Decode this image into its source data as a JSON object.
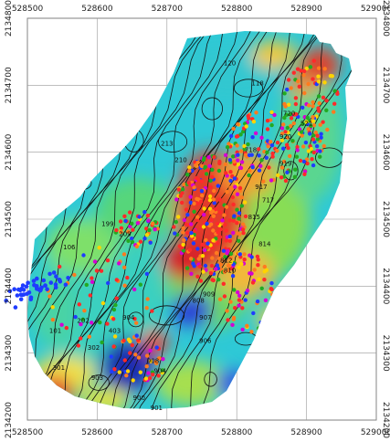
{
  "chart_data": {
    "type": "scatter",
    "title": "",
    "xlabel": "",
    "ylabel": "",
    "x_ticks": [
      "528500",
      "528600",
      "528700",
      "528800",
      "528900",
      "529000"
    ],
    "y_ticks": [
      "2134800",
      "2134700",
      "2134600",
      "2134500",
      "2134400",
      "2134300",
      "2134200"
    ],
    "xlim": [
      528500,
      529000
    ],
    "ylim": [
      2134200,
      2134800
    ],
    "grid": true,
    "contour_labels": [
      {
        "x": 528540,
        "y": 2134330,
        "text": "101"
      },
      {
        "x": 528560,
        "y": 2134455,
        "text": "106"
      },
      {
        "x": 528615,
        "y": 2134490,
        "text": "199"
      },
      {
        "x": 528640,
        "y": 2134475,
        "text": "209"
      },
      {
        "x": 528580,
        "y": 2134345,
        "text": "202"
      },
      {
        "x": 528595,
        "y": 2134305,
        "text": "302"
      },
      {
        "x": 528545,
        "y": 2134275,
        "text": "301"
      },
      {
        "x": 528625,
        "y": 2134330,
        "text": "403"
      },
      {
        "x": 528600,
        "y": 2134260,
        "text": "903"
      },
      {
        "x": 528645,
        "y": 2134350,
        "text": "904"
      },
      {
        "x": 528690,
        "y": 2134270,
        "text": "904"
      },
      {
        "x": 528660,
        "y": 2134230,
        "text": "900"
      },
      {
        "x": 528685,
        "y": 2134215,
        "text": "901"
      },
      {
        "x": 528680,
        "y": 2134285,
        "text": "908"
      },
      {
        "x": 528755,
        "y": 2134315,
        "text": "906"
      },
      {
        "x": 528755,
        "y": 2134350,
        "text": "907"
      },
      {
        "x": 528760,
        "y": 2134385,
        "text": "909"
      },
      {
        "x": 528745,
        "y": 2134375,
        "text": "808"
      },
      {
        "x": 528790,
        "y": 2134420,
        "text": "810"
      },
      {
        "x": 528785,
        "y": 2134435,
        "text": "812"
      },
      {
        "x": 528825,
        "y": 2134500,
        "text": "815"
      },
      {
        "x": 528840,
        "y": 2134460,
        "text": "814"
      },
      {
        "x": 528835,
        "y": 2134545,
        "text": "917"
      },
      {
        "x": 528870,
        "y": 2134580,
        "text": "919"
      },
      {
        "x": 528870,
        "y": 2134620,
        "text": "920"
      },
      {
        "x": 528900,
        "y": 2134640,
        "text": "521"
      },
      {
        "x": 528875,
        "y": 2134655,
        "text": "720"
      },
      {
        "x": 528790,
        "y": 2134730,
        "text": "120"
      },
      {
        "x": 528830,
        "y": 2134700,
        "text": "118"
      },
      {
        "x": 528820,
        "y": 2134600,
        "text": "718"
      },
      {
        "x": 528700,
        "y": 2134610,
        "text": "213"
      },
      {
        "x": 528720,
        "y": 2134585,
        "text": "210"
      },
      {
        "x": 528845,
        "y": 2134525,
        "text": "717"
      }
    ]
  }
}
